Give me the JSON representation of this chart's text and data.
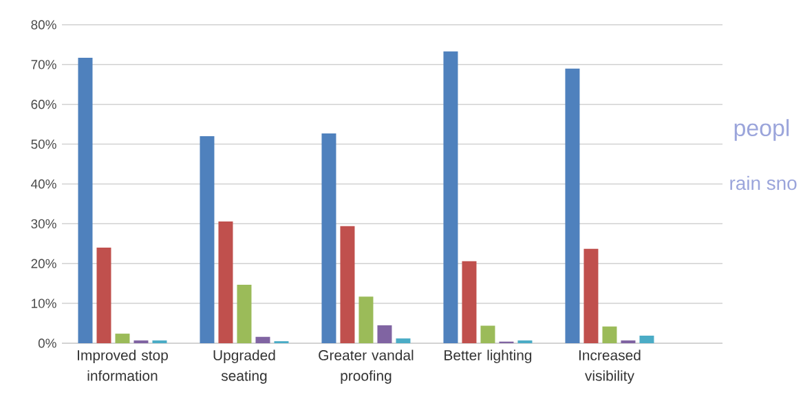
{
  "chart_data": {
    "type": "bar",
    "categories": [
      "Improved stop information",
      "Upgraded seating",
      "Greater vandal proofing",
      "Better lighting",
      "Increased visibility"
    ],
    "series": [
      {
        "color": "#4f81bd",
        "values": [
          71.7,
          52.0,
          52.7,
          73.3,
          69.0
        ]
      },
      {
        "color": "#c0504d",
        "values": [
          24.0,
          30.6,
          29.4,
          20.6,
          23.7
        ]
      },
      {
        "color": "#9bbb59",
        "values": [
          2.4,
          14.7,
          11.7,
          4.4,
          4.2
        ]
      },
      {
        "color": "#8064a2",
        "values": [
          0.7,
          1.6,
          4.5,
          0.4,
          0.7
        ]
      },
      {
        "color": "#4bacc6",
        "values": [
          0.7,
          0.5,
          1.2,
          0.7,
          1.9
        ]
      }
    ],
    "ylim": [
      0,
      80
    ],
    "yticks": [
      {
        "value": 0,
        "label": "0%"
      },
      {
        "value": 10,
        "label": "10%"
      },
      {
        "value": 20,
        "label": "20%"
      },
      {
        "value": 30,
        "label": "30%"
      },
      {
        "value": 40,
        "label": "40%"
      },
      {
        "value": 50,
        "label": "50%"
      },
      {
        "value": 60,
        "label": "60%"
      },
      {
        "value": 70,
        "label": "70%"
      },
      {
        "value": 80,
        "label": "80%"
      }
    ],
    "grid": "y",
    "annotations": [
      "peopl",
      "rain sno"
    ]
  }
}
